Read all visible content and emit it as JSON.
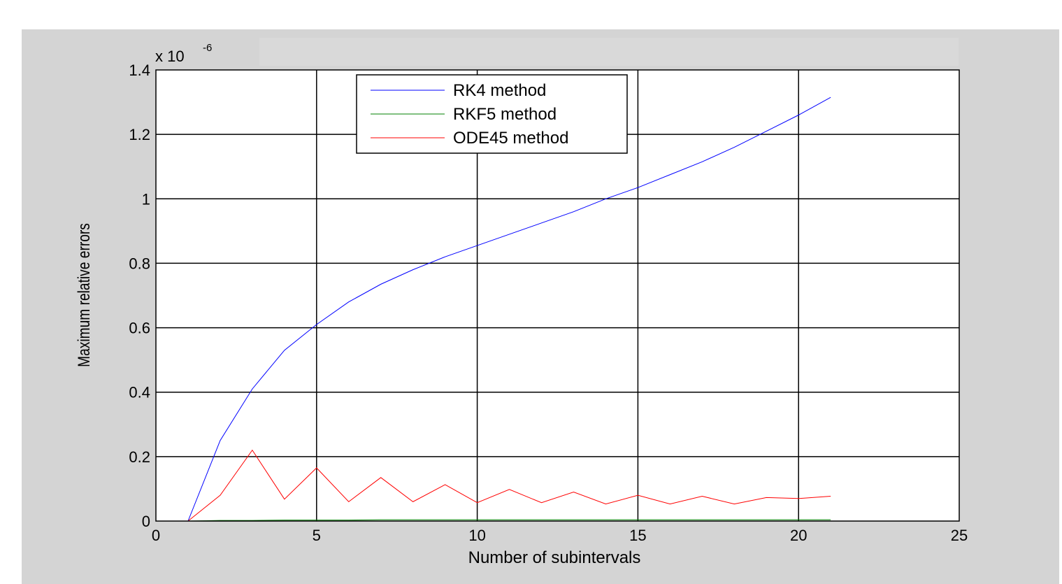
{
  "chart_data": {
    "type": "line",
    "title": "",
    "xlabel": "Number of subintervals",
    "ylabel": "Maximum relative errors",
    "y_exponent_label": "x 10",
    "y_exponent_power": "-6",
    "xlim": [
      0,
      25
    ],
    "ylim": [
      0,
      1.4
    ],
    "xticks": [
      0,
      5,
      10,
      15,
      20,
      25
    ],
    "xtick_labels": [
      "0",
      "5",
      "10",
      "15",
      "20",
      "25"
    ],
    "yticks": [
      0,
      0.2,
      0.4,
      0.6,
      0.8,
      1.0,
      1.2,
      1.4
    ],
    "ytick_labels": [
      "0",
      "0.2",
      "0.4",
      "0.6",
      "0.8",
      "1",
      "1.2",
      "1.4"
    ],
    "grid": true,
    "legend_position": "top-center",
    "x": [
      1,
      2,
      3,
      4,
      5,
      6,
      7,
      8,
      9,
      10,
      11,
      12,
      13,
      14,
      15,
      16,
      17,
      18,
      19,
      20,
      21
    ],
    "series": [
      {
        "name": "RK4 method",
        "color": "#0000ff",
        "values": [
          0.0,
          0.25,
          0.41,
          0.53,
          0.61,
          0.68,
          0.735,
          0.78,
          0.82,
          0.855,
          0.89,
          0.925,
          0.96,
          1.0,
          1.035,
          1.075,
          1.115,
          1.16,
          1.21,
          1.26,
          1.315
        ]
      },
      {
        "name": "RKF5 method",
        "color": "#008000",
        "values": [
          0.0,
          0.002,
          0.002,
          0.003,
          0.003,
          0.003,
          0.004,
          0.004,
          0.004,
          0.004,
          0.004,
          0.004,
          0.004,
          0.004,
          0.004,
          0.004,
          0.004,
          0.004,
          0.004,
          0.004,
          0.004
        ]
      },
      {
        "name": "ODE45 method",
        "color": "#ff0000",
        "values": [
          0.0,
          0.08,
          0.22,
          0.068,
          0.165,
          0.06,
          0.135,
          0.06,
          0.113,
          0.057,
          0.098,
          0.057,
          0.09,
          0.053,
          0.08,
          0.053,
          0.077,
          0.053,
          0.073,
          0.07,
          0.077
        ]
      }
    ]
  }
}
